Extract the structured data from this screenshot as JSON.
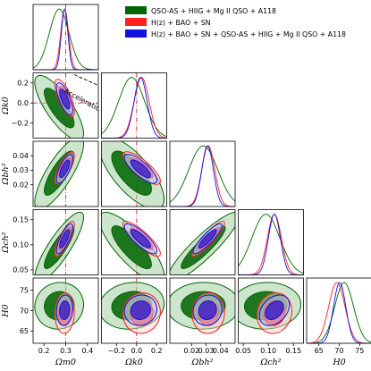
{
  "chart_data": {
    "type": "corner_contour",
    "parameters": [
      {
        "key": "Om",
        "label": "Ωm0",
        "range": [
          0.15,
          0.45
        ],
        "ticks": [
          0.2,
          0.3,
          0.4
        ],
        "tick_labels": [
          "0.2",
          "0.3",
          "0.4"
        ]
      },
      {
        "key": "Ok",
        "label": "Ωk0",
        "range": [
          -0.35,
          0.3
        ],
        "ticks": [
          -0.2,
          0.0,
          0.2
        ],
        "tick_labels": [
          "−0.2",
          "0.0",
          "0.2"
        ]
      },
      {
        "key": "Ob",
        "label": "Ωbh²",
        "range": [
          0.005,
          0.05
        ],
        "ticks": [
          0.02,
          0.03,
          0.04
        ],
        "tick_labels": [
          "0.02",
          "0.03",
          "0.04"
        ]
      },
      {
        "key": "Oc",
        "label": "Ωch²",
        "range": [
          0.04,
          0.17
        ],
        "ticks": [
          0.05,
          0.1,
          0.15
        ],
        "tick_labels": [
          "0.05",
          "0.10",
          "0.15"
        ]
      },
      {
        "key": "H0",
        "label": "H0",
        "range": [
          62,
          78
        ],
        "ticks": [
          65,
          70,
          75
        ],
        "tick_labels": [
          "65",
          "70",
          "75"
        ]
      }
    ],
    "series": [
      {
        "name": "QSO-AS + HIIG + Mg II QSO + A118",
        "color": "#006400",
        "fill1": "#0a6b0a",
        "fill2": "#a4cfa4",
        "mean": {
          "Om": 0.27,
          "Ok": -0.05,
          "Ob": 0.028,
          "Oc": 0.095,
          "H0": 71.2
        },
        "sigma": {
          "Om": 0.045,
          "Ok": 0.13,
          "Ob": 0.01,
          "Oc": 0.028,
          "H0": 2.3
        }
      },
      {
        "name": "H(z) + BAO + SN",
        "color": "#ff2020",
        "fill1": "#ff4040",
        "fill2": "#ffcfcf",
        "mean": {
          "Om": 0.295,
          "Ok": 0.05,
          "Ob": 0.0315,
          "Oc": 0.112,
          "H0": 69.4
        },
        "sigma": {
          "Om": 0.018,
          "Ok": 0.075,
          "Ob": 0.0045,
          "Oc": 0.014,
          "H0": 2.0
        }
      },
      {
        "name": "H(z) + BAO + SN + QSO-AS + HIIG + Mg II QSO + A118",
        "color": "#1010e0",
        "fill1": "#2a1ad0",
        "fill2": "#bdbdf0",
        "mean": {
          "Om": 0.295,
          "Ok": 0.04,
          "Ob": 0.031,
          "Oc": 0.112,
          "H0": 70.1
        },
        "sigma": {
          "Om": 0.015,
          "Ok": 0.065,
          "Ob": 0.004,
          "Oc": 0.012,
          "H0": 1.5
        }
      }
    ],
    "annotations": {
      "acceleration": "Acceleration",
      "reference_lines": {
        "Om": 0.3,
        "Ok": 0.0
      }
    },
    "legend_position": "top-right"
  }
}
